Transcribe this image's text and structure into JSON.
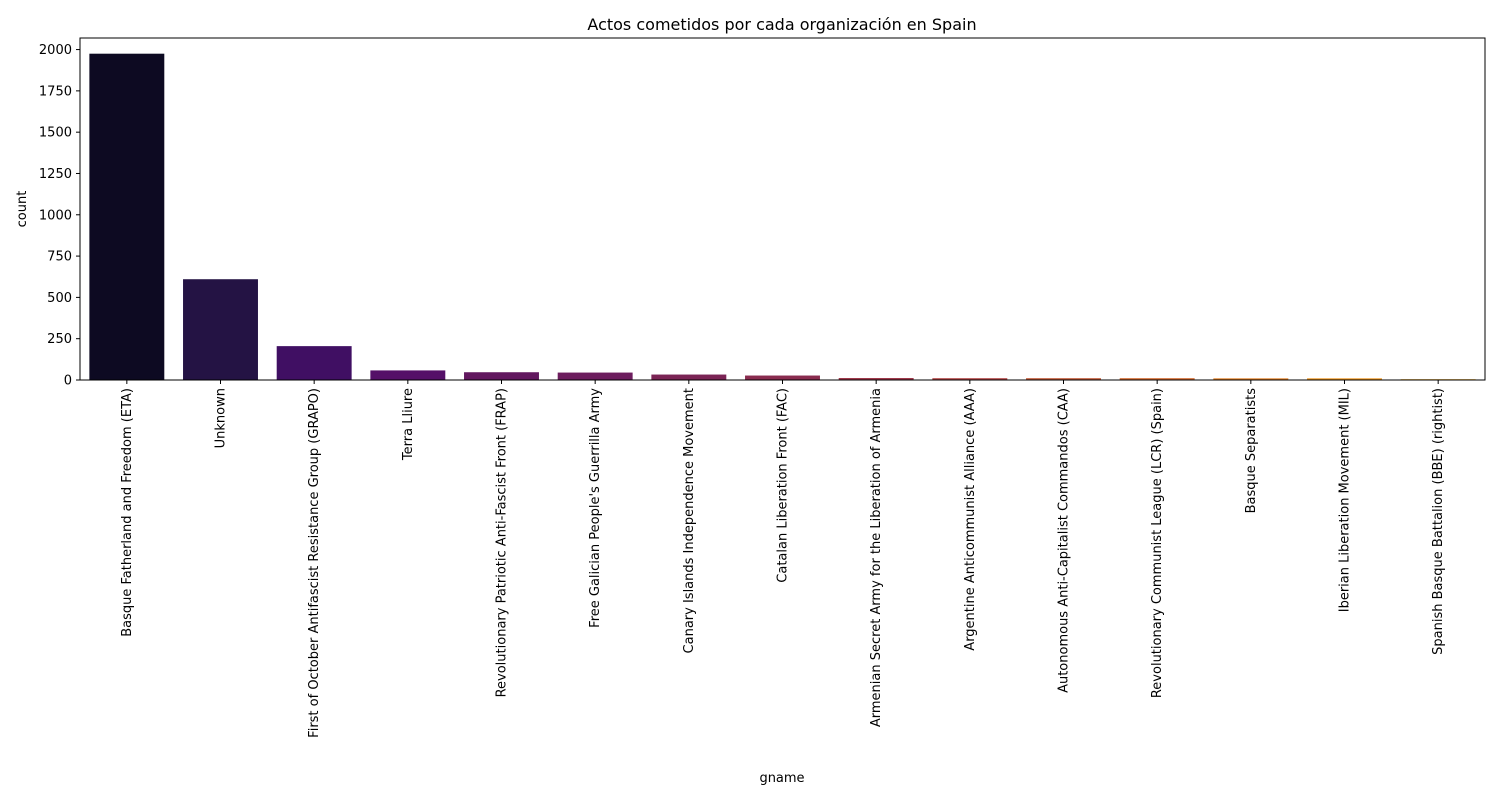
{
  "chart_data": {
    "type": "bar",
    "title": "Actos cometidos por cada organización en Spain",
    "xlabel": "gname",
    "ylabel": "count",
    "ylim": [
      0,
      2070
    ],
    "yticks": [
      0,
      250,
      500,
      750,
      1000,
      1250,
      1500,
      1750,
      2000
    ],
    "grid": false,
    "legend": "none",
    "categories": [
      "Basque Fatherland and Freedom (ETA)",
      "Unknown",
      "First of October Antifascist Resistance Group (GRAPO)",
      "Terra Lliure",
      "Revolutionary Patriotic Anti-Fascist Front (FRAP)",
      "Free Galician People's Guerrilla Army",
      "Canary Islands Independence Movement",
      "Catalan Liberation Front (FAC)",
      "Armenian Secret Army for the Liberation of Armenia",
      "Argentine Anticommunist Alliance (AAA)",
      "Autonomous Anti-Capitalist Commandos (CAA)",
      "Revolutionary Communist League (LCR) (Spain)",
      "Basque Separatists",
      "Iberian Liberation Movement (MIL)",
      "Spanish Basque Battalion (BBE) (rightist)"
    ],
    "values": [
      1975,
      610,
      205,
      58,
      47,
      45,
      33,
      27,
      12,
      11,
      11,
      11,
      10,
      10,
      5
    ],
    "colors": [
      "#0d0a22",
      "#241344",
      "#400f63",
      "#551068",
      "#62185f",
      "#6d1d5e",
      "#7b2455",
      "#8a2c4f",
      "#9f364a",
      "#b24544",
      "#c25736",
      "#d3682e",
      "#e27d21",
      "#ee9318",
      "#f5b130"
    ]
  }
}
